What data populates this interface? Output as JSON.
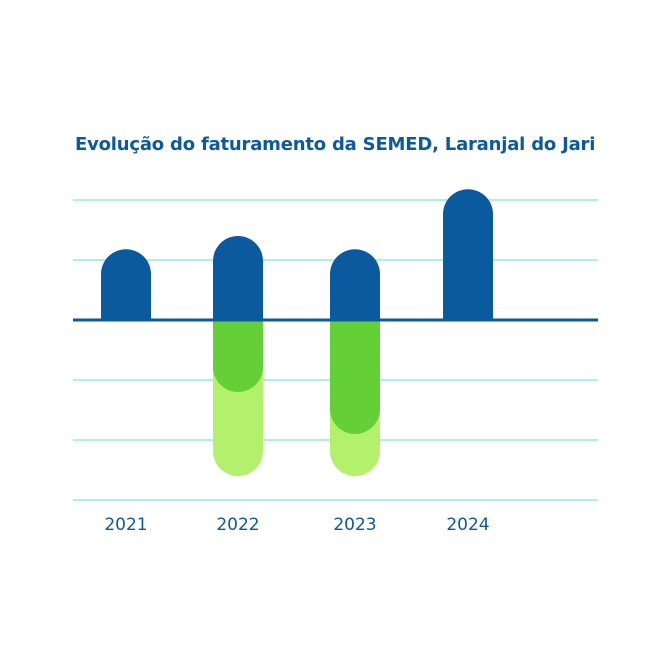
{
  "chart_data": {
    "type": "bar",
    "title": "Evolução do faturamento da SEMED, Laranjal do Jari",
    "categories": [
      "2021",
      "2022",
      "2023",
      "2024"
    ],
    "ylim": [
      -3,
      2
    ],
    "grid": true,
    "series": [
      {
        "key": "positive",
        "color": "#0b5aa0",
        "values": [
          1.18,
          1.4,
          1.18,
          2.18
        ]
      },
      {
        "key": "negative_light",
        "color": "#b3f06b",
        "values": [
          0,
          -2.6,
          -2.6,
          0
        ]
      },
      {
        "key": "negative_dark",
        "color": "#64cf36",
        "values": [
          0,
          -1.2,
          -1.9,
          0
        ]
      }
    ]
  },
  "colors": {
    "title": "#0b5aa0",
    "axis": "#0b5aa0",
    "grid": "#7ee4e4",
    "tick_label": "#0b5aa0"
  }
}
